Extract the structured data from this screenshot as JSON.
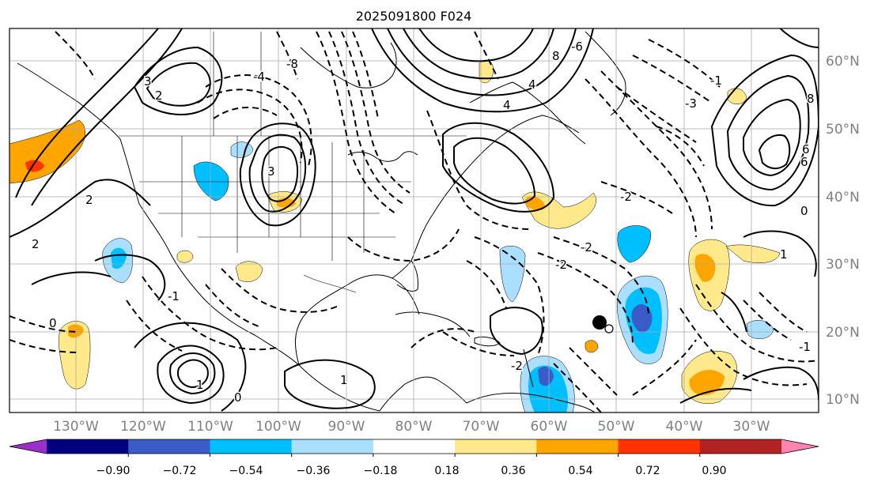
{
  "title": "2025091800 F024",
  "longitude_labels": [
    "130°W",
    "120°W",
    "110°W",
    "100°W",
    "90°W",
    "80°W",
    "70°W",
    "60°W",
    "50°W",
    "40°W",
    "30°W"
  ],
  "latitude_labels": [
    "60°N",
    "50°N",
    "40°N",
    "30°N",
    "20°N",
    "10°N"
  ],
  "colorbar": {
    "tick_labels": [
      "−0.90",
      "−0.72",
      "−0.54",
      "−0.36",
      "−0.18",
      "0.18",
      "0.36",
      "0.54",
      "0.72",
      "0.90"
    ],
    "colors": [
      "#9b30c8",
      "#000080",
      "#3a5cc9",
      "#00bfff",
      "#aadfff",
      "#ffffff",
      "#ffe98a",
      "#ffa500",
      "#ff3300",
      "#b22222",
      "#ff85b0"
    ]
  },
  "contour_labels": [
    {
      "text": "1"
    },
    {
      "text": "1"
    },
    {
      "text": "-1"
    },
    {
      "text": "-2"
    },
    {
      "text": "-2"
    },
    {
      "text": "-3"
    },
    {
      "text": "3"
    },
    {
      "text": "2"
    },
    {
      "text": "-4"
    },
    {
      "text": "-6"
    },
    {
      "text": "-8"
    },
    {
      "text": "8"
    },
    {
      "text": "6"
    },
    {
      "text": "4"
    },
    {
      "text": "2"
    },
    {
      "text": "0"
    },
    {
      "text": "0"
    },
    {
      "text": "0"
    },
    {
      "text": "2"
    },
    {
      "text": "-2"
    },
    {
      "text": "3"
    },
    {
      "text": "4"
    },
    {
      "text": "6"
    },
    {
      "text": "8"
    },
    {
      "text": "-1"
    },
    {
      "text": "-2"
    },
    {
      "text": "1"
    },
    {
      "text": "-1"
    }
  ],
  "map": {
    "colors": {
      "coast": "#000000",
      "grid": "#aaaaaa",
      "axis_text": "#808080",
      "contour": "#000000"
    }
  }
}
